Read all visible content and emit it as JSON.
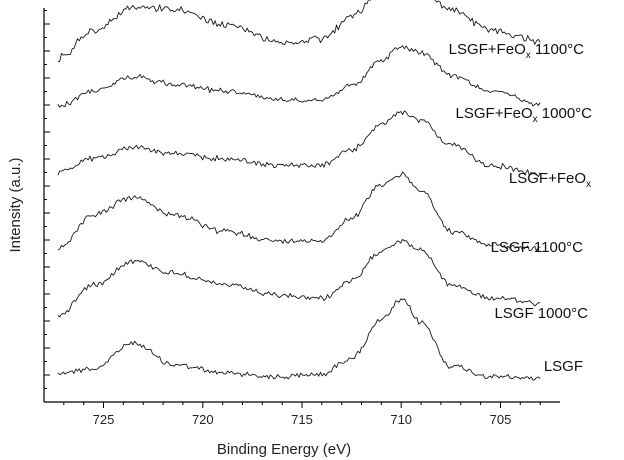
{
  "chart_data": {
    "type": "line",
    "title": "",
    "xlabel": "Binding Energy (eV)",
    "ylabel": "Intensity (a.u.)",
    "xlim": [
      728,
      702
    ],
    "x_reversed": true,
    "x_ticks": [
      725,
      720,
      715,
      710,
      705
    ],
    "y_tick_labels": false,
    "stacked_offset": true,
    "series": [
      {
        "name": "LSGF",
        "label_text": "LSGF",
        "label_sub": "",
        "label_suffix": "",
        "points": [
          [
            727.3,
            0.18
          ],
          [
            725.5,
            0.24
          ],
          [
            723.5,
            0.62
          ],
          [
            721.5,
            0.3
          ],
          [
            719,
            0.18
          ],
          [
            716,
            0.12
          ],
          [
            714,
            0.16
          ],
          [
            712.5,
            0.4
          ],
          [
            711,
            0.95
          ],
          [
            710,
            1.25
          ],
          [
            709,
            0.92
          ],
          [
            707.5,
            0.28
          ],
          [
            705.5,
            0.12
          ],
          [
            703,
            0.1
          ]
        ]
      },
      {
        "name": "LSGF 1000°C",
        "label_text": "LSGF 1000°C",
        "label_sub": "",
        "label_suffix": "",
        "points": [
          [
            727.3,
            0.1
          ],
          [
            725.5,
            0.55
          ],
          [
            723.5,
            0.9
          ],
          [
            721.5,
            0.72
          ],
          [
            719,
            0.55
          ],
          [
            716,
            0.38
          ],
          [
            714,
            0.35
          ],
          [
            712.5,
            0.6
          ],
          [
            711,
            1.05
          ],
          [
            710,
            1.2
          ],
          [
            709,
            1.05
          ],
          [
            707.5,
            0.55
          ],
          [
            705.5,
            0.35
          ],
          [
            703,
            0.28
          ]
        ]
      },
      {
        "name": "LSGF 1100°C",
        "label_text": "LSGF 1100°C",
        "label_sub": "",
        "label_suffix": "",
        "points": [
          [
            727.3,
            0.2
          ],
          [
            725.5,
            0.7
          ],
          [
            723.5,
            0.95
          ],
          [
            721.5,
            0.7
          ],
          [
            719,
            0.45
          ],
          [
            716,
            0.3
          ],
          [
            714,
            0.32
          ],
          [
            712.5,
            0.65
          ],
          [
            711,
            1.15
          ],
          [
            710,
            1.28
          ],
          [
            709,
            1.05
          ],
          [
            707.5,
            0.45
          ],
          [
            705.5,
            0.25
          ],
          [
            703,
            0.2
          ]
        ]
      },
      {
        "name": "LSGF+FeOx",
        "label_text": "LSGF+FeO",
        "label_sub": "x",
        "label_suffix": "",
        "points": [
          [
            727.3,
            0.35
          ],
          [
            725.5,
            0.55
          ],
          [
            723.5,
            0.72
          ],
          [
            721.5,
            0.62
          ],
          [
            719,
            0.55
          ],
          [
            716,
            0.45
          ],
          [
            714,
            0.45
          ],
          [
            712.5,
            0.68
          ],
          [
            711,
            1.05
          ],
          [
            710,
            1.22
          ],
          [
            709,
            1.12
          ],
          [
            707.5,
            0.75
          ],
          [
            705.5,
            0.45
          ],
          [
            703,
            0.32
          ]
        ]
      },
      {
        "name": "LSGF+FeOx 1000°C",
        "label_text": "LSGF+FeO",
        "label_sub": "x",
        "label_suffix": " 1000°C",
        "points": [
          [
            727.3,
            0.32
          ],
          [
            725.5,
            0.55
          ],
          [
            723.5,
            0.75
          ],
          [
            721.5,
            0.65
          ],
          [
            719,
            0.55
          ],
          [
            716,
            0.42
          ],
          [
            714,
            0.42
          ],
          [
            712.5,
            0.62
          ],
          [
            711,
            1.0
          ],
          [
            710,
            1.2
          ],
          [
            709,
            1.12
          ],
          [
            707.5,
            0.78
          ],
          [
            705.5,
            0.55
          ],
          [
            703,
            0.35
          ]
        ]
      },
      {
        "name": "LSGF+FeOx 1100°C",
        "label_text": "LSGF+FeO",
        "label_sub": "x",
        "label_suffix": " 1100°C",
        "points": [
          [
            727.3,
            0.3
          ],
          [
            725.5,
            0.7
          ],
          [
            723.5,
            1.05
          ],
          [
            721.5,
            1.0
          ],
          [
            719,
            0.8
          ],
          [
            716,
            0.52
          ],
          [
            714,
            0.58
          ],
          [
            712.5,
            0.9
          ],
          [
            711,
            1.25
          ],
          [
            710,
            1.38
          ],
          [
            709,
            1.32
          ],
          [
            707.5,
            1.0
          ],
          [
            705.5,
            0.7
          ],
          [
            703,
            0.55
          ]
        ]
      }
    ]
  }
}
